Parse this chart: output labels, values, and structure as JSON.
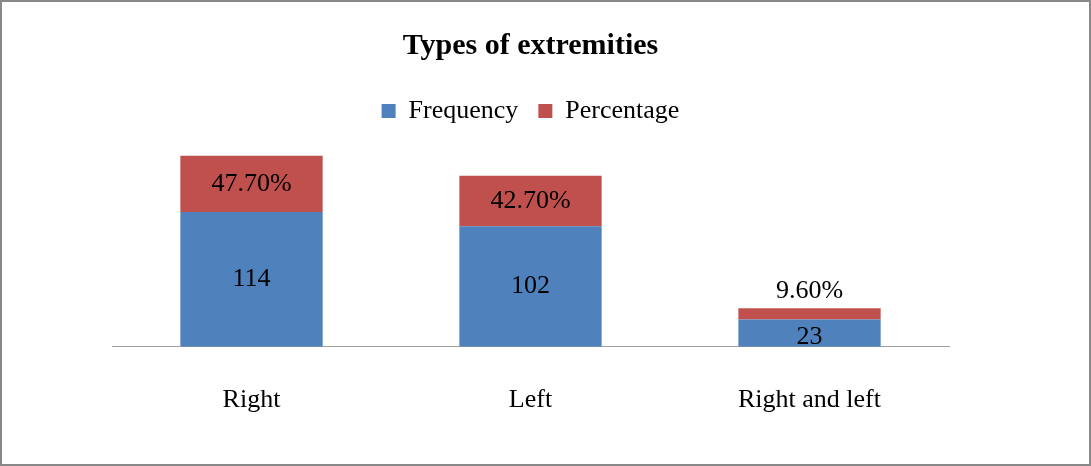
{
  "chart_data": {
    "type": "bar",
    "title": "Types of extremities",
    "categories": [
      "Right",
      "Left",
      "Right and left"
    ],
    "stacked": true,
    "legend": "top",
    "tick_labels": "x",
    "series": [
      {
        "name": "Frequency",
        "color": "#4f81bd",
        "values": [
          114,
          102,
          23
        ],
        "value_labels": [
          "114",
          "102",
          "23"
        ]
      },
      {
        "name": "Percentage",
        "color": "#c0504d",
        "values": [
          47.7,
          42.7,
          9.6
        ],
        "value_labels": [
          "47.70%",
          "42.70%",
          "9.60%"
        ]
      }
    ]
  }
}
